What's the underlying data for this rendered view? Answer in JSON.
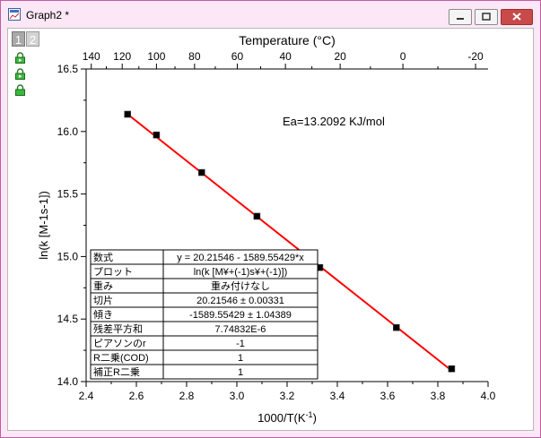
{
  "window": {
    "title": "Graph2 *"
  },
  "layer_tabs": [
    "1",
    "2"
  ],
  "icons": [
    "graph-window-icon",
    "minimize-icon",
    "maximize-icon",
    "close-icon",
    "lock-icon"
  ],
  "colors": {
    "line": "#ff0000",
    "marker": "#000000",
    "accent": "#c25ca8"
  },
  "chart_data": {
    "type": "scatter",
    "xlabel": "1000/T(K",
    "xlabel_sup": "-1",
    "xlabel_tail": ")",
    "ylabel": "ln(k [M-1s-1])",
    "top_axis_label": "Temperature (°C)",
    "xlim": [
      2.4,
      4.0
    ],
    "ylim": [
      14.0,
      16.5
    ],
    "x_ticks": [
      "2.4",
      "2.6",
      "2.8",
      "3.0",
      "3.2",
      "3.4",
      "3.6",
      "3.8",
      "4.0"
    ],
    "y_ticks": [
      "14.0",
      "14.5",
      "15.0",
      "15.5",
      "16.0",
      "16.5"
    ],
    "top_ticks": [
      {
        "label": "140",
        "c": 140
      },
      {
        "label": "120",
        "c": 120
      },
      {
        "label": "100",
        "c": 100
      },
      {
        "label": "80",
        "c": 80
      },
      {
        "label": "60",
        "c": 60
      },
      {
        "label": "40",
        "c": 40
      },
      {
        "label": "20",
        "c": 20
      },
      {
        "label": "0",
        "c": 0
      },
      {
        "label": "-20",
        "c": -20
      }
    ],
    "points": [
      {
        "x": 2.565,
        "y": 16.138
      },
      {
        "x": 2.68,
        "y": 15.972
      },
      {
        "x": 2.86,
        "y": 15.672
      },
      {
        "x": 3.08,
        "y": 15.322
      },
      {
        "x": 3.33,
        "y": 14.912
      },
      {
        "x": 3.635,
        "y": 14.432
      },
      {
        "x": 3.855,
        "y": 14.102
      }
    ],
    "fit_line": {
      "slope": -1.58955429,
      "intercept": 20.21546,
      "x_range": [
        2.565,
        3.855
      ]
    },
    "annotation": "Ea=13.2092 KJ/mol",
    "fit_table": [
      [
        "数式",
        "y = 20.21546 - 1589.55429*x"
      ],
      [
        "プロット",
        "ln(k [M¥+(-1)s¥+(-1)])"
      ],
      [
        "重み",
        "重み付けなし"
      ],
      [
        "切片",
        "20.21546 ± 0.00331"
      ],
      [
        "傾き",
        "-1589.55429 ± 1.04389"
      ],
      [
        "残差平方和",
        "7.74832E-6"
      ],
      [
        "ピアソンのr",
        "-1"
      ],
      [
        "R二乗(COD)",
        "1"
      ],
      [
        "補正R二乗",
        "1"
      ]
    ]
  }
}
